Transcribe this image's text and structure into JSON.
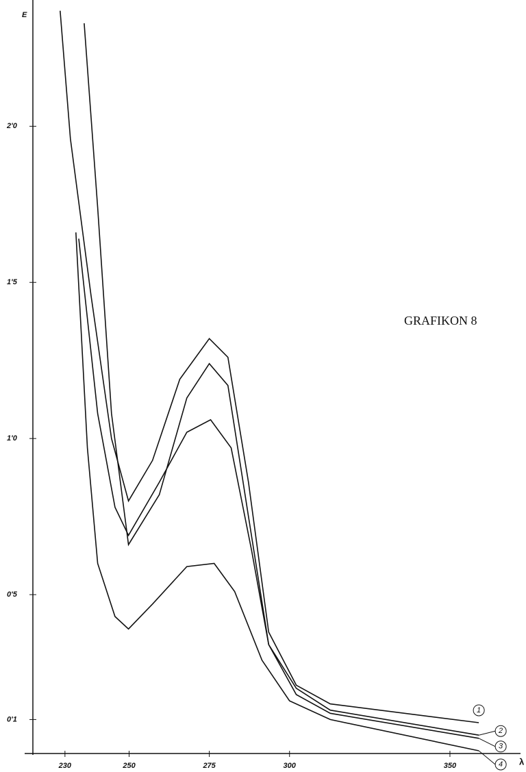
{
  "chart_data": {
    "type": "line",
    "title": "GRAFIKON 8",
    "y_label": "E",
    "x_label": "λ",
    "xlim": [
      220,
      372
    ],
    "ylim": [
      0,
      2.4
    ],
    "xticks": [
      230,
      250,
      275,
      300,
      350
    ],
    "yticks": [
      {
        "value": 0.1,
        "label": "0'1"
      },
      {
        "value": 0.5,
        "label": "0'5"
      },
      {
        "value": 1.0,
        "label": "1'0"
      },
      {
        "value": 1.5,
        "label": "1'5"
      },
      {
        "value": 2.0,
        "label": "2'0"
      }
    ],
    "color": "#111111",
    "series": [
      {
        "name": "1",
        "x": [
          228.5,
          231.7,
          238.1,
          244.5,
          249.8,
          257.3,
          265.8,
          275,
          280.8,
          287.2,
          293.5,
          302.1,
          312.7,
          359
        ],
        "values": [
          2.37,
          1.96,
          1.46,
          1.0,
          0.8,
          0.93,
          1.19,
          1.32,
          1.26,
          0.86,
          0.38,
          0.21,
          0.15,
          0.09
        ]
      },
      {
        "name": "2",
        "x": [
          236,
          240.2,
          244.5,
          249.8,
          259.4,
          268,
          275,
          280.8,
          287.2,
          293.5,
          302.1,
          312.7,
          359
        ],
        "values": [
          2.33,
          1.74,
          1.08,
          0.66,
          0.82,
          1.13,
          1.24,
          1.17,
          0.75,
          0.34,
          0.2,
          0.13,
          0.05
        ]
      },
      {
        "name": "3",
        "x": [
          234.3,
          240.2,
          245.6,
          249.8,
          259.4,
          268,
          275.4,
          281.8,
          288.2,
          293.5,
          302.1,
          312.7,
          359
        ],
        "values": [
          1.64,
          1.08,
          0.78,
          0.69,
          0.86,
          1.02,
          1.06,
          0.97,
          0.64,
          0.34,
          0.18,
          0.12,
          0.04
        ]
      },
      {
        "name": "4",
        "x": [
          233.4,
          237,
          240.2,
          245.6,
          249.8,
          257.3,
          268,
          276.5,
          282.9,
          291.4,
          300,
          312.7,
          359
        ],
        "values": [
          1.66,
          0.97,
          0.6,
          0.43,
          0.39,
          0.47,
          0.59,
          0.6,
          0.51,
          0.29,
          0.16,
          0.1,
          0.0
        ]
      }
    ]
  }
}
